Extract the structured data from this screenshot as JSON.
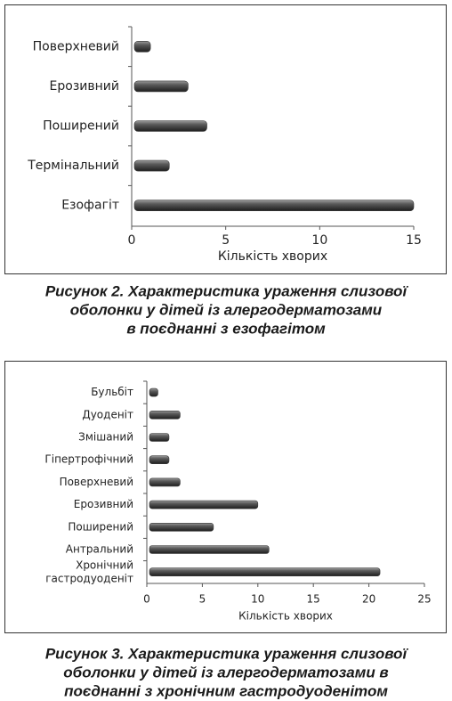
{
  "chart_data": [
    {
      "type": "bar",
      "orientation": "horizontal",
      "categories": [
        "Поверхневий",
        "Ерозивний",
        "Поширений",
        "Термінальний",
        "Езофагіт"
      ],
      "values": [
        1,
        3,
        4,
        2,
        15
      ],
      "color": "#3a3a3a",
      "xlabel": "Кількість хворих",
      "xlim": [
        0,
        15
      ],
      "xticks": [
        0,
        5,
        10,
        15
      ],
      "caption": [
        "Рисунок 2. Характеристика ураження слизової",
        "оболонки у дітей із алергодерматозами",
        "в поєднанні з езофагітом"
      ]
    },
    {
      "type": "bar",
      "orientation": "horizontal",
      "categories": [
        "Бульбіт",
        "Дуоденіт",
        "Змішаний",
        "Гіпертрофічний",
        "Поверхневий",
        "Ерозивний",
        "Поширений",
        "Антральний",
        "Хронічний гастродуоденіт"
      ],
      "values": [
        1,
        3,
        2,
        2,
        3,
        10,
        6,
        11,
        21
      ],
      "color": "#3a3a3a",
      "xlabel": "Кількість хворих",
      "xlim": [
        0,
        25
      ],
      "xticks": [
        0,
        5,
        10,
        15,
        20,
        25
      ],
      "caption": [
        "Рисунок 3. Характеристика ураження слизової",
        "оболонки у дітей із алергодерматозами в",
        "поєднанні з хронічним гастродуоденітом"
      ]
    }
  ]
}
